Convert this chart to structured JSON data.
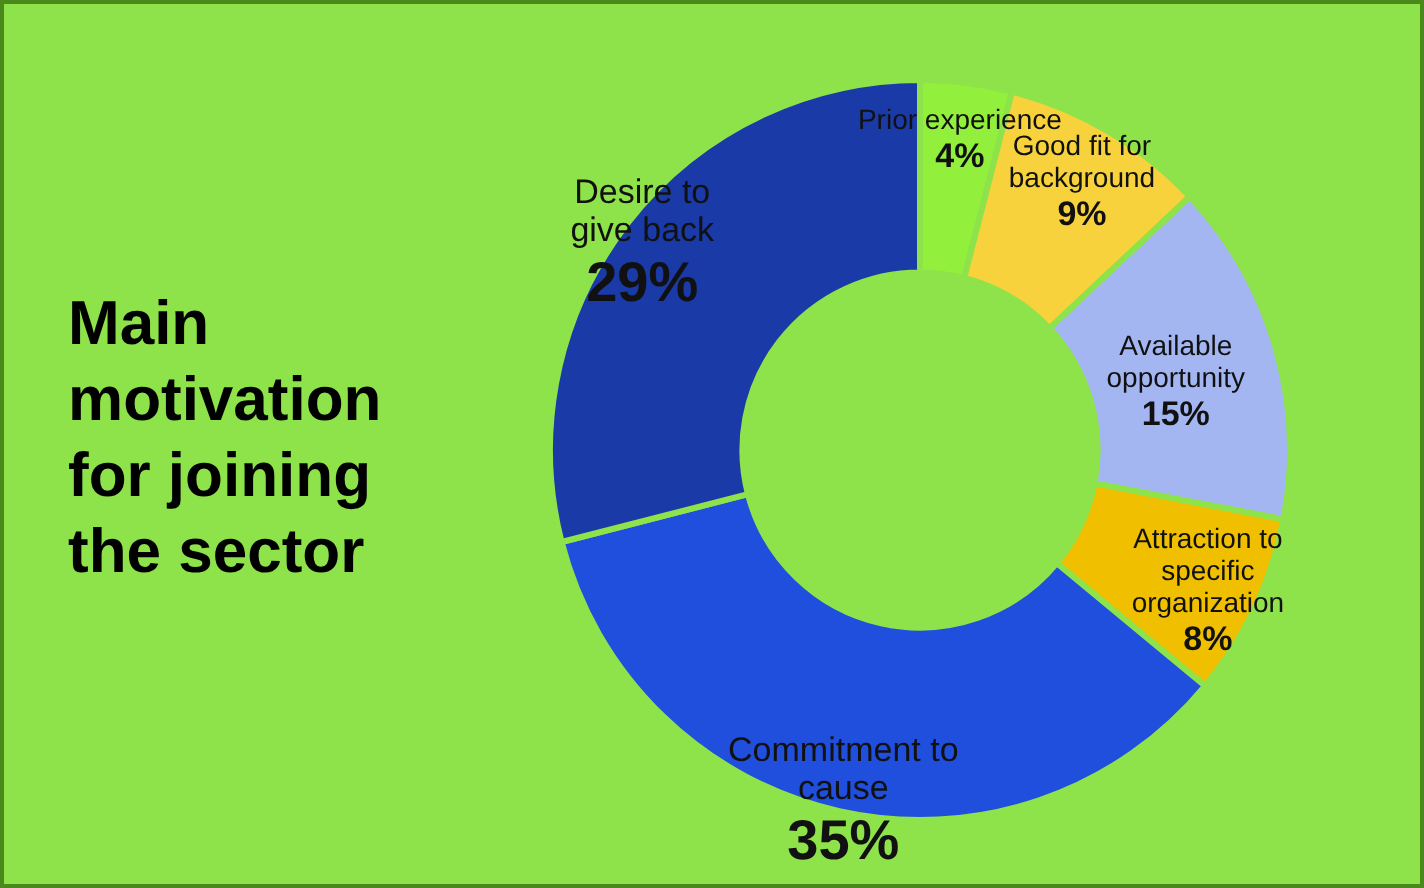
{
  "chart_data": {
    "type": "donut",
    "title": "Main motivation for joining the sector",
    "categories": [
      "Prior experience",
      "Good fit for background",
      "Available opportunity",
      "Attraction to specific organization",
      "Commitment to cause",
      "Desire to give back"
    ],
    "values": [
      4,
      9,
      15,
      8,
      35,
      29
    ],
    "value_labels": [
      "4%",
      "9%",
      "15%",
      "8%",
      "35%",
      "29%"
    ],
    "colors": [
      "#92f03c",
      "#f7d23c",
      "#a4b6f2",
      "#f0c000",
      "#1f4fdc",
      "#1a3aa8"
    ]
  }
}
